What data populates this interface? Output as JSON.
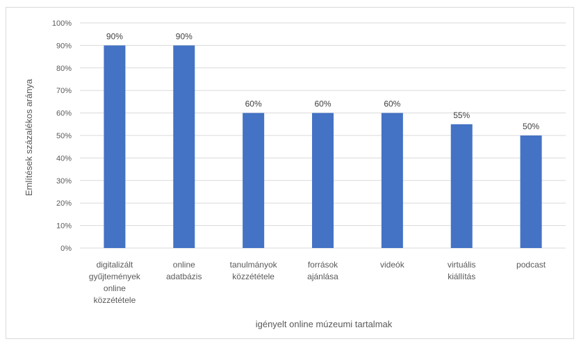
{
  "chart_data": {
    "type": "bar",
    "categories": [
      [
        "digitalizált",
        "gyűjtemények",
        "online",
        "közzététele"
      ],
      [
        "online",
        "adatbázis"
      ],
      [
        "tanulmányok",
        "közzététele"
      ],
      [
        "források",
        "ajánlása"
      ],
      [
        "videók"
      ],
      [
        "virtuális",
        "kiállítás"
      ],
      [
        "podcast"
      ]
    ],
    "values": [
      90,
      90,
      60,
      60,
      60,
      55,
      50
    ],
    "data_labels": [
      "90%",
      "90%",
      "60%",
      "60%",
      "60%",
      "55%",
      "50%"
    ],
    "xlabel": "igényelt online múzeumi tartalmak",
    "ylabel": "Említések százalékos aránya",
    "ylim": [
      0,
      100
    ],
    "yticks": [
      "0%",
      "10%",
      "20%",
      "30%",
      "40%",
      "50%",
      "60%",
      "70%",
      "80%",
      "90%",
      "100%"
    ],
    "grid": true,
    "bar_color": "#4472c4",
    "grid_color": "#d9d9d9"
  }
}
